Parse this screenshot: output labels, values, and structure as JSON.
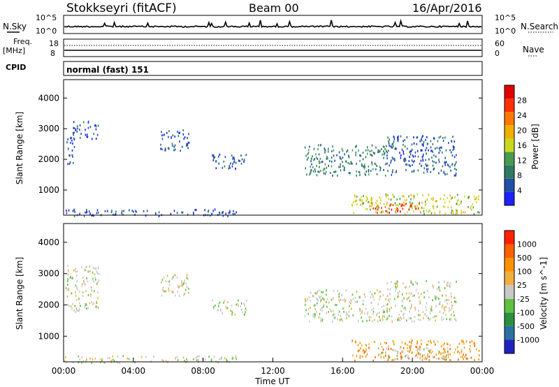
{
  "header": {
    "station": "Stokkseyri (fitACF)",
    "beam": "Beam 00",
    "date": "16/Apr/2016"
  },
  "noise_panel": {
    "left_label": "N.Sky",
    "right_label": "N.Search",
    "left_ticks": [
      "10^5",
      "10^0"
    ],
    "right_ticks": [
      "10^5",
      "10^0"
    ]
  },
  "freq_panel": {
    "label_line1": "Freq.",
    "label_line2": "[MHz]",
    "left_ticks": [
      "18",
      "8"
    ],
    "right_ticks": [
      "60",
      "0"
    ],
    "right_label": "Nave"
  },
  "cpid": {
    "label": "CPID",
    "value": "normal (fast) 151"
  },
  "x_axis": {
    "ticks": [
      "00:00",
      "04:00",
      "08:00",
      "12:00",
      "16:00",
      "20:00",
      "00:00"
    ],
    "label": "Time UT"
  },
  "chart_data": [
    {
      "type": "heatmap",
      "name": "power",
      "x_range_hours": [
        0,
        24
      ],
      "ylim": [
        180,
        4600
      ],
      "ylabel": "Slant Range [km]",
      "y_ticks": [
        1000,
        2000,
        3000,
        4000
      ],
      "colorbar": {
        "label": "Power [dB]",
        "ticks": [
          "4",
          "8",
          "12",
          "16",
          "20",
          "24",
          "28"
        ],
        "colors": [
          "#1f1fff",
          "#2050a8",
          "#2e7a62",
          "#4a9a50",
          "#c8d820",
          "#f0b000",
          "#ff7800",
          "#ff3000",
          "#e00000"
        ]
      },
      "regions": [
        {
          "t0": 0.1,
          "t1": 0.6,
          "r0": 1800,
          "r1": 2800,
          "level": 1
        },
        {
          "t0": 0.5,
          "t1": 2.0,
          "r0": 2700,
          "r1": 3300,
          "level": 1
        },
        {
          "t0": 5.5,
          "t1": 7.2,
          "r0": 2300,
          "r1": 3000,
          "level": 1
        },
        {
          "t0": 8.5,
          "t1": 10.5,
          "r0": 1700,
          "r1": 2200,
          "level": 1
        },
        {
          "t0": 13.8,
          "t1": 18.5,
          "r0": 1500,
          "r1": 2500,
          "level": 2
        },
        {
          "t0": 16.5,
          "t1": 23.8,
          "r0": 250,
          "r1": 900,
          "level": 4
        },
        {
          "t0": 17.5,
          "t1": 20.5,
          "r0": 280,
          "r1": 600,
          "level": 7
        },
        {
          "t0": 18.5,
          "t1": 22.5,
          "r0": 1500,
          "r1": 2800,
          "level": 1
        },
        {
          "t0": 0.0,
          "t1": 10.0,
          "r0": 180,
          "r1": 400,
          "level": 1
        }
      ]
    },
    {
      "type": "heatmap",
      "name": "velocity",
      "x_range_hours": [
        0,
        24
      ],
      "ylim": [
        180,
        4600
      ],
      "ylabel": "Slant Range [km]",
      "y_ticks": [
        1000,
        2000,
        3000,
        4000
      ],
      "colorbar": {
        "label": "Velocity [m s^-1]",
        "ticks": [
          "1000",
          "500",
          "100",
          "25",
          "-25",
          "-100",
          "-500",
          "-1000"
        ],
        "colors": [
          "#2020c0",
          "#2a70a0",
          "#2a9040",
          "#60c040",
          "#c8c8c8",
          "#f0b040",
          "#ff9000",
          "#ff6000",
          "#ff2000"
        ]
      },
      "regions": [
        {
          "t0": 0.1,
          "t1": 2.0,
          "r0": 1800,
          "r1": 3300,
          "level": 4
        },
        {
          "t0": 5.5,
          "t1": 7.2,
          "r0": 2300,
          "r1": 3000,
          "level": 4
        },
        {
          "t0": 8.5,
          "t1": 10.5,
          "r0": 1700,
          "r1": 2200,
          "level": 4
        },
        {
          "t0": 13.8,
          "t1": 18.5,
          "r0": 1500,
          "r1": 2500,
          "level": 4
        },
        {
          "t0": 16.5,
          "t1": 23.8,
          "r0": 250,
          "r1": 900,
          "level": 6
        },
        {
          "t0": 18.0,
          "t1": 22.0,
          "r0": 300,
          "r1": 700,
          "level": 4
        },
        {
          "t0": 18.5,
          "t1": 22.5,
          "r0": 1500,
          "r1": 2800,
          "level": 4
        },
        {
          "t0": 0.0,
          "t1": 10.0,
          "r0": 180,
          "r1": 400,
          "level": 4
        }
      ]
    }
  ]
}
